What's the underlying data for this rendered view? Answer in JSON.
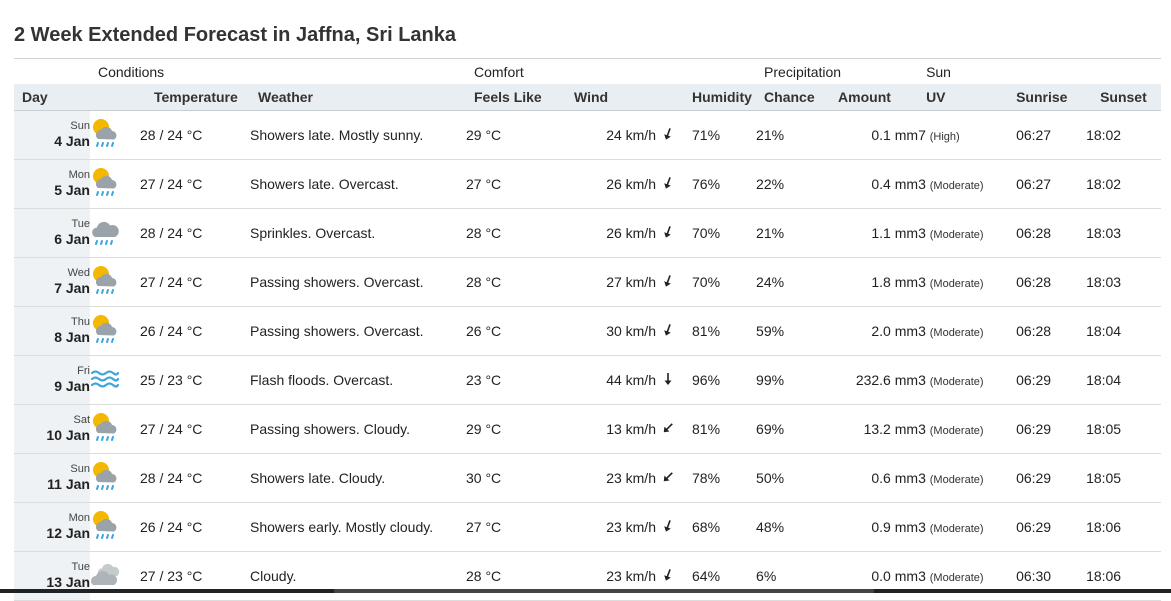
{
  "title": "2 Week Extended Forecast in Jaffna, Sri Lanka",
  "groups": {
    "conditions": "Conditions",
    "comfort": "Comfort",
    "precipitation": "Precipitation",
    "sun": "Sun"
  },
  "columns": {
    "day": "Day",
    "temperature": "Temperature",
    "weather": "Weather",
    "feels_like": "Feels Like",
    "wind": "Wind",
    "humidity": "Humidity",
    "chance": "Chance",
    "amount": "Amount",
    "uv": "UV",
    "sunrise": "Sunrise",
    "sunset": "Sunset"
  },
  "rows": [
    {
      "dow": "Sun",
      "date": "4 Jan",
      "icon": "sun-cloud-rain-icon",
      "temp": "28 / 24 °C",
      "weather": "Showers late. Mostly sunny.",
      "feels": "29 °C",
      "wind": "24 km/h",
      "wind_dir_icon": "arrow-ssw-icon",
      "humidity": "71%",
      "chance": "21%",
      "amount": "0.1 mm",
      "uv": "7",
      "uv_desc": "(High)",
      "sunrise": "06:27",
      "sunset": "18:02"
    },
    {
      "dow": "Mon",
      "date": "5 Jan",
      "icon": "sun-cloud-rain-icon",
      "temp": "27 / 24 °C",
      "weather": "Showers late. Overcast.",
      "feels": "27 °C",
      "wind": "26 km/h",
      "wind_dir_icon": "arrow-ssw-icon",
      "humidity": "76%",
      "chance": "22%",
      "amount": "0.4 mm",
      "uv": "3",
      "uv_desc": "(Moderate)",
      "sunrise": "06:27",
      "sunset": "18:02"
    },
    {
      "dow": "Tue",
      "date": "6 Jan",
      "icon": "cloud-rain-icon",
      "temp": "28 / 24 °C",
      "weather": "Sprinkles. Overcast.",
      "feels": "28 °C",
      "wind": "26 km/h",
      "wind_dir_icon": "arrow-ssw-icon",
      "humidity": "70%",
      "chance": "21%",
      "amount": "1.1 mm",
      "uv": "3",
      "uv_desc": "(Moderate)",
      "sunrise": "06:28",
      "sunset": "18:03"
    },
    {
      "dow": "Wed",
      "date": "7 Jan",
      "icon": "sun-cloud-rain-icon",
      "temp": "27 / 24 °C",
      "weather": "Passing showers. Overcast.",
      "feels": "28 °C",
      "wind": "27 km/h",
      "wind_dir_icon": "arrow-ssw-icon",
      "humidity": "70%",
      "chance": "24%",
      "amount": "1.8 mm",
      "uv": "3",
      "uv_desc": "(Moderate)",
      "sunrise": "06:28",
      "sunset": "18:03"
    },
    {
      "dow": "Thu",
      "date": "8 Jan",
      "icon": "sun-cloud-rain-icon",
      "temp": "26 / 24 °C",
      "weather": "Passing showers. Overcast.",
      "feels": "26 °C",
      "wind": "30 km/h",
      "wind_dir_icon": "arrow-ssw-icon",
      "humidity": "81%",
      "chance": "59%",
      "amount": "2.0 mm",
      "uv": "3",
      "uv_desc": "(Moderate)",
      "sunrise": "06:28",
      "sunset": "18:04"
    },
    {
      "dow": "Fri",
      "date": "9 Jan",
      "icon": "flood-waves-icon",
      "temp": "25 / 23 °C",
      "weather": "Flash floods. Overcast.",
      "feels": "23 °C",
      "wind": "44 km/h",
      "wind_dir_icon": "arrow-s-icon",
      "humidity": "96%",
      "chance": "99%",
      "amount": "232.6 mm",
      "uv": "3",
      "uv_desc": "(Moderate)",
      "sunrise": "06:29",
      "sunset": "18:04"
    },
    {
      "dow": "Sat",
      "date": "10 Jan",
      "icon": "sun-cloud-rain-icon",
      "temp": "27 / 24 °C",
      "weather": "Passing showers. Cloudy.",
      "feels": "29 °C",
      "wind": "13 km/h",
      "wind_dir_icon": "arrow-sw-icon",
      "humidity": "81%",
      "chance": "69%",
      "amount": "13.2 mm",
      "uv": "3",
      "uv_desc": "(Moderate)",
      "sunrise": "06:29",
      "sunset": "18:05"
    },
    {
      "dow": "Sun",
      "date": "11 Jan",
      "icon": "sun-cloud-rain-icon",
      "temp": "28 / 24 °C",
      "weather": "Showers late. Cloudy.",
      "feels": "30 °C",
      "wind": "23 km/h",
      "wind_dir_icon": "arrow-sw-icon",
      "humidity": "78%",
      "chance": "50%",
      "amount": "0.6 mm",
      "uv": "3",
      "uv_desc": "(Moderate)",
      "sunrise": "06:29",
      "sunset": "18:05"
    },
    {
      "dow": "Mon",
      "date": "12 Jan",
      "icon": "sun-cloud-rain-icon",
      "temp": "26 / 24 °C",
      "weather": "Showers early. Mostly cloudy.",
      "feels": "27 °C",
      "wind": "23 km/h",
      "wind_dir_icon": "arrow-ssw-icon",
      "humidity": "68%",
      "chance": "48%",
      "amount": "0.9 mm",
      "uv": "3",
      "uv_desc": "(Moderate)",
      "sunrise": "06:29",
      "sunset": "18:06"
    },
    {
      "dow": "Tue",
      "date": "13 Jan",
      "icon": "clouds-icon",
      "temp": "27 / 23 °C",
      "weather": "Cloudy.",
      "feels": "28 °C",
      "wind": "23 km/h",
      "wind_dir_icon": "arrow-ssw-icon",
      "humidity": "64%",
      "chance": "6%",
      "amount": "0.0 mm",
      "uv": "3",
      "uv_desc": "(Moderate)",
      "sunrise": "06:30",
      "sunset": "18:06"
    }
  ],
  "colors": {
    "header_bg": "#e9eef2",
    "day_bg": "#eef2f5",
    "sun": "#f5b800",
    "cloud": "#9aa3aa",
    "rain": "#3ea6dc"
  }
}
